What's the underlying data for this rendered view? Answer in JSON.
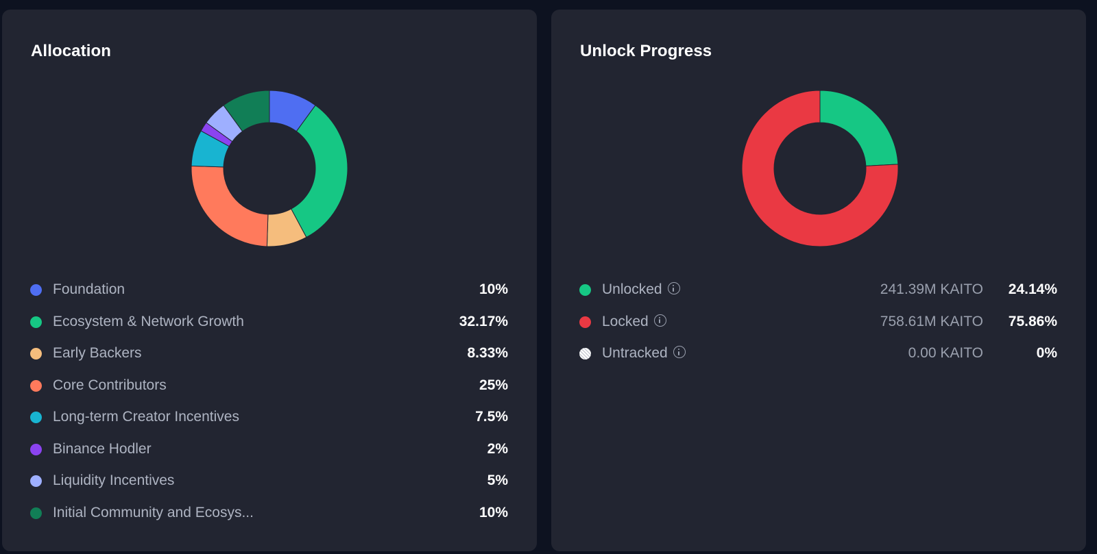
{
  "allocation": {
    "title": "Allocation",
    "chart_data": {
      "type": "pie",
      "categories": [
        "Foundation",
        "Ecosystem & Network Growth",
        "Early Backers",
        "Core Contributors",
        "Long-term Creator Incentives",
        "Binance Hodler",
        "Liquidity Incentives",
        "Initial Community and Ecosys..."
      ],
      "values": [
        10,
        32.17,
        8.33,
        25,
        7.5,
        2,
        5,
        10
      ],
      "colors": [
        "#4f6ef2",
        "#16c784",
        "#f5bd7d",
        "#ff7a5c",
        "#18b4d1",
        "#8b43f0",
        "#9eafff",
        "#117e56"
      ],
      "title": ""
    },
    "items": [
      {
        "label": "Foundation",
        "pct": "10%"
      },
      {
        "label": "Ecosystem & Network Growth",
        "pct": "32.17%"
      },
      {
        "label": "Early Backers",
        "pct": "8.33%"
      },
      {
        "label": "Core Contributors",
        "pct": "25%"
      },
      {
        "label": "Long-term Creator Incentives",
        "pct": "7.5%"
      },
      {
        "label": "Binance Hodler",
        "pct": "2%"
      },
      {
        "label": "Liquidity Incentives",
        "pct": "5%"
      },
      {
        "label": "Initial Community and Ecosys...",
        "pct": "10%"
      }
    ]
  },
  "unlock": {
    "title": "Unlock Progress",
    "chart_data": {
      "type": "pie",
      "categories": [
        "Unlocked",
        "Locked",
        "Untracked"
      ],
      "values": [
        24.14,
        75.86,
        0
      ],
      "colors": [
        "#16c784",
        "#ea3943",
        "#ffffff"
      ],
      "title": ""
    },
    "items": [
      {
        "label": "Unlocked",
        "amount": "241.39M KAITO",
        "pct": "24.14%",
        "info_icon": "info-icon"
      },
      {
        "label": "Locked",
        "amount": "758.61M KAITO",
        "pct": "75.86%",
        "info_icon": "info-icon"
      },
      {
        "label": "Untracked",
        "amount": "0.00 KAITO",
        "pct": "0%",
        "info_icon": "info-icon"
      }
    ]
  }
}
